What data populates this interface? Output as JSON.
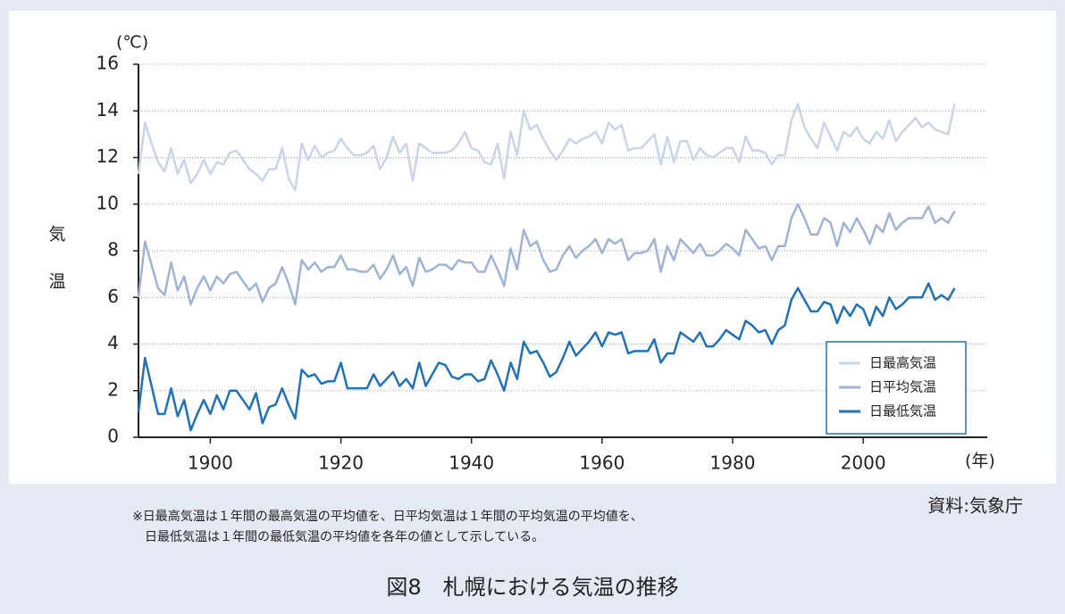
{
  "chart_data": {
    "type": "line",
    "unit_label": "(℃)",
    "y_label": "気温",
    "x_unit_label": "(年)",
    "source": "資料:気象庁",
    "note": [
      "※日最高気温は１年間の最高気温の平均値を、日平均気温は１年間の平均気温の平均値を、",
      "日最低気温は１年間の最低気温の平均値を各年の値として示している。"
    ],
    "caption": "図8　札幌における気温の推移",
    "x": [
      1889,
      1890,
      1891,
      1892,
      1893,
      1894,
      1895,
      1896,
      1897,
      1898,
      1899,
      1900,
      1901,
      1902,
      1903,
      1904,
      1905,
      1906,
      1907,
      1908,
      1909,
      1910,
      1911,
      1912,
      1913,
      1914,
      1915,
      1916,
      1917,
      1918,
      1919,
      1920,
      1921,
      1922,
      1923,
      1924,
      1925,
      1926,
      1927,
      1928,
      1929,
      1930,
      1931,
      1932,
      1933,
      1934,
      1935,
      1936,
      1937,
      1938,
      1939,
      1940,
      1941,
      1942,
      1943,
      1944,
      1945,
      1946,
      1947,
      1948,
      1949,
      1950,
      1951,
      1952,
      1953,
      1954,
      1955,
      1956,
      1957,
      1958,
      1959,
      1960,
      1961,
      1962,
      1963,
      1964,
      1965,
      1966,
      1967,
      1968,
      1969,
      1970,
      1971,
      1972,
      1973,
      1974,
      1975,
      1976,
      1977,
      1978,
      1979,
      1980,
      1981,
      1982,
      1983,
      1984,
      1985,
      1986,
      1987,
      1988,
      1989,
      1990,
      1991,
      1992,
      1993,
      1994,
      1995,
      1996,
      1997,
      1998,
      1999,
      2000,
      2001,
      2002,
      2003,
      2004,
      2005,
      2006,
      2007,
      2008,
      2009,
      2010,
      2011,
      2012,
      2013,
      2014
    ],
    "series": [
      {
        "name": "日最高気温",
        "color": "#c9d4ea",
        "values": [
          11.3,
          13.5,
          12.6,
          11.8,
          11.4,
          12.4,
          11.3,
          11.9,
          10.9,
          11.3,
          11.9,
          11.3,
          11.8,
          11.7,
          12.2,
          12.3,
          11.9,
          11.5,
          11.3,
          11.0,
          11.5,
          11.5,
          12.4,
          11.1,
          10.6,
          12.6,
          11.9,
          12.5,
          12.0,
          12.2,
          12.3,
          12.8,
          12.4,
          12.1,
          12.1,
          12.2,
          12.5,
          11.5,
          12.0,
          12.9,
          12.2,
          12.6,
          11.0,
          12.6,
          12.4,
          12.2,
          12.2,
          12.2,
          12.3,
          12.6,
          13.1,
          12.4,
          12.3,
          11.8,
          11.7,
          12.6,
          11.1,
          13.1,
          12.1,
          14.0,
          13.2,
          13.4,
          12.8,
          12.3,
          11.9,
          12.3,
          12.8,
          12.6,
          12.8,
          12.9,
          13.1,
          12.6,
          13.5,
          13.2,
          13.4,
          12.3,
          12.4,
          12.4,
          12.7,
          13.0,
          11.7,
          12.9,
          11.8,
          12.7,
          12.7,
          11.9,
          12.4,
          12.1,
          12.0,
          12.2,
          12.4,
          12.4,
          11.8,
          12.9,
          12.3,
          12.3,
          12.2,
          11.7,
          12.1,
          12.1,
          13.6,
          14.3,
          13.3,
          12.8,
          12.4,
          13.5,
          12.9,
          12.3,
          13.1,
          12.9,
          13.3,
          12.8,
          12.6,
          13.1,
          12.8,
          13.6,
          12.7,
          13.1,
          13.4,
          13.7,
          13.3,
          13.5,
          13.2,
          13.1,
          13.0,
          14.3
        ]
      },
      {
        "name": "日平均気温",
        "color": "#9fb3d6",
        "values": [
          6.0,
          8.4,
          7.4,
          6.4,
          6.1,
          7.5,
          6.3,
          6.9,
          5.7,
          6.4,
          6.9,
          6.3,
          6.9,
          6.6,
          7.0,
          7.1,
          6.7,
          6.3,
          6.6,
          5.8,
          6.4,
          6.6,
          7.3,
          6.6,
          5.7,
          7.6,
          7.2,
          7.5,
          7.1,
          7.3,
          7.3,
          7.8,
          7.2,
          7.2,
          7.1,
          7.1,
          7.4,
          6.8,
          7.2,
          7.8,
          7.0,
          7.3,
          6.5,
          7.7,
          7.1,
          7.2,
          7.4,
          7.4,
          7.2,
          7.6,
          7.5,
          7.5,
          7.1,
          7.1,
          7.8,
          7.2,
          6.5,
          8.1,
          7.2,
          8.9,
          8.2,
          8.4,
          7.6,
          7.1,
          7.2,
          7.8,
          8.2,
          7.7,
          8.0,
          8.2,
          8.5,
          7.9,
          8.5,
          8.3,
          8.5,
          7.6,
          7.9,
          7.9,
          8.0,
          8.5,
          7.1,
          8.2,
          7.6,
          8.5,
          8.2,
          7.9,
          8.3,
          7.8,
          7.8,
          8.0,
          8.3,
          8.1,
          7.8,
          8.9,
          8.5,
          8.1,
          8.2,
          7.6,
          8.2,
          8.2,
          9.4,
          10.0,
          9.4,
          8.7,
          8.7,
          9.4,
          9.2,
          8.2,
          9.2,
          8.8,
          9.4,
          8.9,
          8.3,
          9.1,
          8.8,
          9.6,
          8.9,
          9.2,
          9.4,
          9.4,
          9.4,
          9.9,
          9.2,
          9.4,
          9.2,
          9.7
        ]
      },
      {
        "name": "日最低気温",
        "color": "#1f72b6",
        "values": [
          1.1,
          3.4,
          2.2,
          1.0,
          1.0,
          2.1,
          0.9,
          1.6,
          0.3,
          1.0,
          1.6,
          1.0,
          1.8,
          1.2,
          2.0,
          2.0,
          1.6,
          1.2,
          1.9,
          0.6,
          1.3,
          1.4,
          2.1,
          1.4,
          0.8,
          2.9,
          2.6,
          2.7,
          2.3,
          2.4,
          2.4,
          3.2,
          2.1,
          2.1,
          2.1,
          2.1,
          2.7,
          2.2,
          2.5,
          2.8,
          2.2,
          2.5,
          2.1,
          3.2,
          2.2,
          2.7,
          3.2,
          3.1,
          2.6,
          2.5,
          2.7,
          2.7,
          2.4,
          2.5,
          3.3,
          2.7,
          2.0,
          3.2,
          2.5,
          4.1,
          3.6,
          3.7,
          3.2,
          2.6,
          2.8,
          3.4,
          4.1,
          3.5,
          3.8,
          4.1,
          4.5,
          3.9,
          4.5,
          4.4,
          4.5,
          3.6,
          3.7,
          3.7,
          3.7,
          4.2,
          3.2,
          3.6,
          3.6,
          4.5,
          4.3,
          4.1,
          4.5,
          3.9,
          3.9,
          4.2,
          4.6,
          4.4,
          4.2,
          5.0,
          4.8,
          4.5,
          4.6,
          4.0,
          4.6,
          4.8,
          5.9,
          6.4,
          5.9,
          5.4,
          5.4,
          5.8,
          5.7,
          4.9,
          5.6,
          5.2,
          5.7,
          5.5,
          4.8,
          5.6,
          5.2,
          6.0,
          5.5,
          5.7,
          6.0,
          6.0,
          6.0,
          6.6,
          5.9,
          6.1,
          5.9,
          6.4
        ]
      }
    ],
    "xlim": [
      1889,
      2019
    ],
    "xticks": [
      1900,
      1920,
      1940,
      1960,
      1980,
      2000
    ],
    "ylim": [
      0,
      16
    ],
    "yticks": [
      0,
      2,
      4,
      6,
      8,
      10,
      12,
      14,
      16
    ],
    "grid": true,
    "legend": "lower right"
  }
}
